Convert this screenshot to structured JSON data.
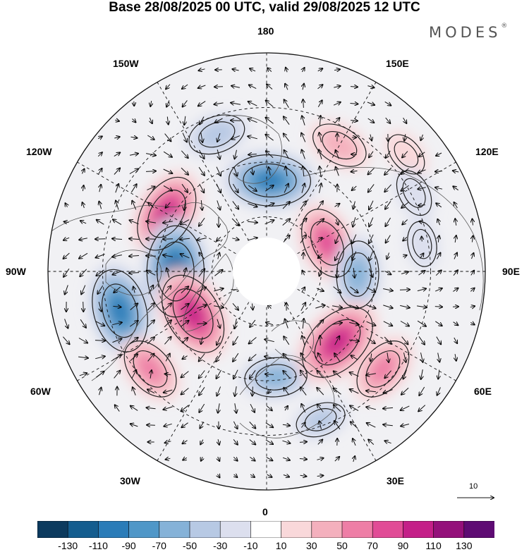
{
  "title": "Base 28/08/2025 00 UTC, valid 29/08/2025 12 UTC",
  "brand": {
    "name": "MODES",
    "mark": "®"
  },
  "longitude_labels": {
    "top": "180",
    "bottom": "0",
    "left": "90W",
    "right": "90E",
    "upper_left_1": "150W",
    "upper_left_2": "120W",
    "upper_right_1": "150E",
    "upper_right_2": "120E",
    "lower_left_1": "60W",
    "lower_left_2": "30W",
    "lower_right_1": "60E",
    "lower_right_2": "30E"
  },
  "vector_reference": {
    "label": "10"
  },
  "colorbar": {
    "colors": [
      "#0c3a5e",
      "#145d8f",
      "#2a7cb8",
      "#4f97c8",
      "#85b2d8",
      "#b7c9e4",
      "#dcdfee",
      "#ffffff",
      "#f9d8da",
      "#f4b0bd",
      "#ee7ea6",
      "#e14c96",
      "#c41f88",
      "#94107a",
      "#5e0b73"
    ],
    "ticks": [
      "-130",
      "-110",
      "-90",
      "-70",
      "-50",
      "-30",
      "-10",
      "10",
      "30",
      "50",
      "70",
      "90",
      "110",
      "130"
    ]
  },
  "anomaly_cells": [
    {
      "name": "low-north-pacific-west",
      "lon": -160,
      "colat": 48,
      "value": -45
    },
    {
      "name": "low-bering",
      "lon": 178,
      "colat": 30,
      "value": -95
    },
    {
      "name": "high-kamchatka",
      "lon": 150,
      "colat": 48,
      "value": 45
    },
    {
      "name": "high-canada",
      "lon": -120,
      "colat": 38,
      "value": 90
    },
    {
      "name": "high-siberia",
      "lon": 115,
      "colat": 22,
      "value": 75
    },
    {
      "name": "low-hudson",
      "lon": -90,
      "colat": 30,
      "value": -115
    },
    {
      "name": "low-labrador",
      "lon": -75,
      "colat": 50,
      "value": -100
    },
    {
      "name": "low-central-siberia",
      "lon": 88,
      "colat": 30,
      "value": -65
    },
    {
      "name": "high-greenland-south",
      "lon": -60,
      "colat": 28,
      "value": 100
    },
    {
      "name": "high-atlantic",
      "lon": -50,
      "colat": 50,
      "value": 60
    },
    {
      "name": "low-north-sea",
      "lon": 5,
      "colat": 35,
      "value": -55
    },
    {
      "name": "low-mediterranean",
      "lon": 20,
      "colat": 52,
      "value": -30
    },
    {
      "name": "high-scandinavia-russia",
      "lon": 45,
      "colat": 33,
      "value": 100
    },
    {
      "name": "high-caspian",
      "lon": 50,
      "colat": 50,
      "value": 60
    },
    {
      "name": "low-central-asia",
      "lon": 100,
      "colat": 52,
      "value": -20
    },
    {
      "name": "high-east-asia",
      "lon": 130,
      "colat": 60,
      "value": 20
    },
    {
      "name": "low-east-asia",
      "lon": 118,
      "colat": 55,
      "value": -25
    }
  ]
}
